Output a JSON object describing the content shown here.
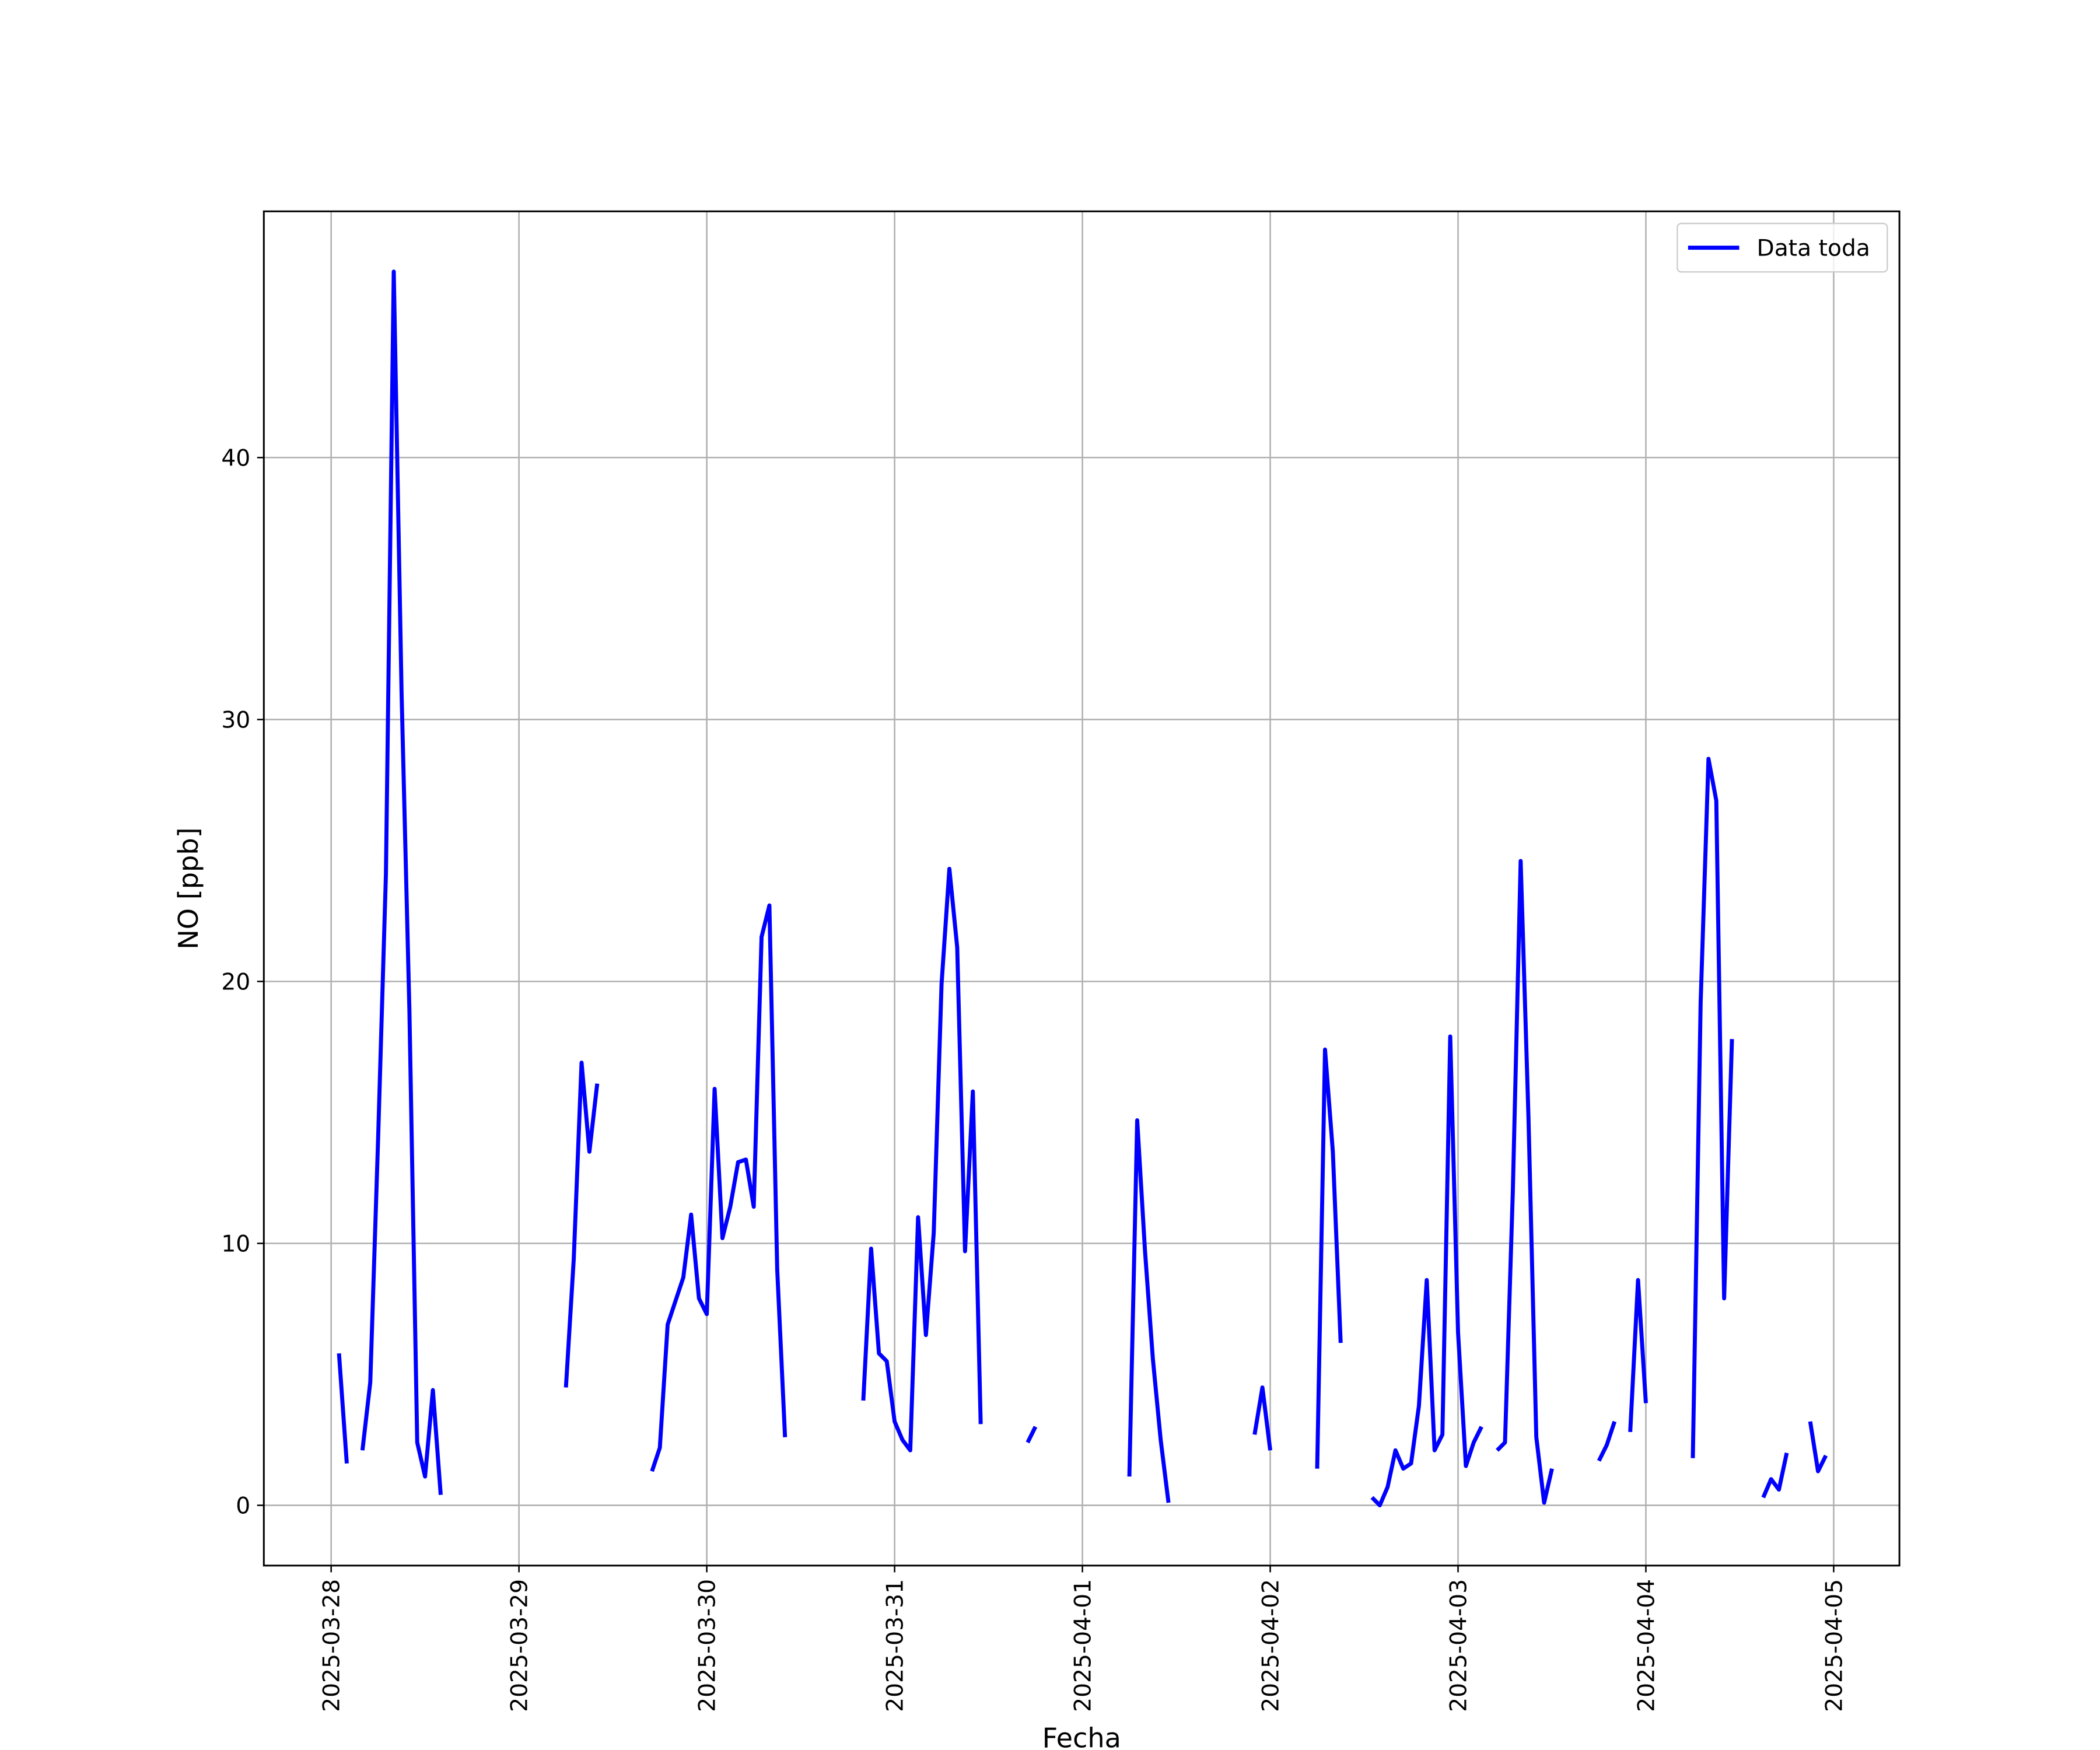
{
  "chart_data": {
    "type": "line",
    "xlabel": "Fecha",
    "ylabel": "NO [ppb]",
    "x": [
      "2025-03-28T01:00Z",
      "2025-03-28T02:00Z",
      "2025-03-28T03:00Z",
      "2025-03-28T04:00Z",
      "2025-03-28T05:00Z",
      "2025-03-28T06:00Z",
      "2025-03-28T07:00Z",
      "2025-03-28T08:00Z",
      "2025-03-28T09:00Z",
      "2025-03-28T10:00Z",
      "2025-03-28T11:00Z",
      "2025-03-28T12:00Z",
      "2025-03-28T13:00Z",
      "2025-03-28T14:00Z",
      "2025-03-28T20:00Z",
      "2025-03-29T06:00Z",
      "2025-03-29T07:00Z",
      "2025-03-29T08:00Z",
      "2025-03-29T09:00Z",
      "2025-03-29T10:00Z",
      "2025-03-29T13:00Z",
      "2025-03-29T17:00Z",
      "2025-03-29T18:00Z",
      "2025-03-29T19:00Z",
      "2025-03-29T20:00Z",
      "2025-03-29T21:00Z",
      "2025-03-29T22:00Z",
      "2025-03-29T23:00Z",
      "2025-03-30T00:00Z",
      "2025-03-30T01:00Z",
      "2025-03-30T02:00Z",
      "2025-03-30T03:00Z",
      "2025-03-30T04:00Z",
      "2025-03-30T05:00Z",
      "2025-03-30T06:00Z",
      "2025-03-30T07:00Z",
      "2025-03-30T08:00Z",
      "2025-03-30T09:00Z",
      "2025-03-30T10:00Z",
      "2025-03-30T15:00Z",
      "2025-03-30T20:00Z",
      "2025-03-30T21:00Z",
      "2025-03-30T22:00Z",
      "2025-03-30T23:00Z",
      "2025-03-31T00:00Z",
      "2025-03-31T01:00Z",
      "2025-03-31T02:00Z",
      "2025-03-31T03:00Z",
      "2025-03-31T04:00Z",
      "2025-03-31T05:00Z",
      "2025-03-31T06:00Z",
      "2025-03-31T07:00Z",
      "2025-03-31T08:00Z",
      "2025-03-31T09:00Z",
      "2025-03-31T10:00Z",
      "2025-03-31T11:00Z",
      "2025-03-31T14:00Z",
      "2025-03-31T17:00Z",
      "2025-03-31T18:00Z",
      "2025-03-31T23:00Z",
      "2025-04-01T06:00Z",
      "2025-04-01T07:00Z",
      "2025-04-01T08:00Z",
      "2025-04-01T09:00Z",
      "2025-04-01T10:00Z",
      "2025-04-01T11:00Z",
      "2025-04-01T16:00Z",
      "2025-04-01T22:00Z",
      "2025-04-01T23:00Z",
      "2025-04-02T00:00Z",
      "2025-04-02T03:00Z",
      "2025-04-02T06:00Z",
      "2025-04-02T07:00Z",
      "2025-04-02T08:00Z",
      "2025-04-02T09:00Z",
      "2025-04-02T11:00Z",
      "2025-04-02T13:00Z",
      "2025-04-02T14:00Z",
      "2025-04-02T15:00Z",
      "2025-04-02T16:00Z",
      "2025-04-02T17:00Z",
      "2025-04-02T18:00Z",
      "2025-04-02T19:00Z",
      "2025-04-02T20:00Z",
      "2025-04-02T21:00Z",
      "2025-04-02T22:00Z",
      "2025-04-02T23:00Z",
      "2025-04-03T00:00Z",
      "2025-04-03T01:00Z",
      "2025-04-03T02:00Z",
      "2025-04-03T03:00Z",
      "2025-04-03T04:00Z",
      "2025-04-03T05:00Z",
      "2025-04-03T06:00Z",
      "2025-04-03T07:00Z",
      "2025-04-03T08:00Z",
      "2025-04-03T09:00Z",
      "2025-04-03T10:00Z",
      "2025-04-03T11:00Z",
      "2025-04-03T12:00Z",
      "2025-04-03T15:00Z",
      "2025-04-03T18:00Z",
      "2025-04-03T19:00Z",
      "2025-04-03T20:00Z",
      "2025-04-03T21:00Z",
      "2025-04-03T22:00Z",
      "2025-04-03T23:00Z",
      "2025-04-04T00:00Z",
      "2025-04-04T03:00Z",
      "2025-04-04T06:00Z",
      "2025-04-04T07:00Z",
      "2025-04-04T08:00Z",
      "2025-04-04T09:00Z",
      "2025-04-04T10:00Z",
      "2025-04-04T11:00Z",
      "2025-04-04T13:00Z",
      "2025-04-04T15:00Z",
      "2025-04-04T16:00Z",
      "2025-04-04T17:00Z",
      "2025-04-04T18:00Z",
      "2025-04-04T20:00Z",
      "2025-04-04T21:00Z",
      "2025-04-04T22:00Z",
      "2025-04-04T23:00Z"
    ],
    "series": [
      {
        "name": "Data toda",
        "color": "#0000ff",
        "values": [
          5.8,
          1.6,
          null,
          2.1,
          4.7,
          14.0,
          24.1,
          47.1,
          31.0,
          18.9,
          2.4,
          1.1,
          4.4,
          0.4,
          null,
          4.5,
          9.4,
          16.9,
          13.5,
          16.1,
          null,
          1.3,
          2.2,
          6.9,
          7.8,
          8.7,
          11.1,
          7.9,
          7.3,
          15.9,
          10.2,
          11.4,
          13.1,
          13.2,
          11.4,
          21.7,
          22.9,
          9.0,
          2.6,
          null,
          4.0,
          9.8,
          5.8,
          5.5,
          3.2,
          2.5,
          2.1,
          11.0,
          6.5,
          10.4,
          19.9,
          24.3,
          21.3,
          9.7,
          15.8,
          3.1,
          null,
          2.4,
          3.0,
          null,
          1.1,
          14.7,
          9.7,
          5.6,
          2.5,
          0.1,
          null,
          2.7,
          4.5,
          2.1,
          null,
          1.4,
          17.4,
          13.5,
          6.2,
          null,
          0.3,
          0.0,
          0.7,
          2.1,
          1.4,
          1.6,
          3.8,
          8.6,
          2.1,
          2.7,
          17.9,
          6.6,
          1.5,
          2.4,
          3.0,
          null,
          2.1,
          2.4,
          12.0,
          24.6,
          14.8,
          2.6,
          0.1,
          1.4,
          null,
          1.7,
          2.3,
          3.2,
          null,
          2.8,
          8.6,
          3.9,
          null,
          1.8,
          19.2,
          28.5,
          26.9,
          7.9,
          17.8,
          null,
          0.3,
          1.0,
          0.6,
          2.0,
          null,
          3.2,
          1.3,
          1.9
        ]
      }
    ],
    "xlim": [
      "2025-03-27T15:24Z",
      "2025-04-05T08:24Z"
    ],
    "xticks": [
      "2025-03-28",
      "2025-03-29",
      "2025-03-30",
      "2025-03-31",
      "2025-04-01",
      "2025-04-02",
      "2025-04-03",
      "2025-04-04",
      "2025-04-05"
    ],
    "ylim": [
      -2.3,
      49.4
    ],
    "yticks": [
      0,
      10,
      20,
      30,
      40
    ],
    "grid": true,
    "legend": "upper right"
  }
}
